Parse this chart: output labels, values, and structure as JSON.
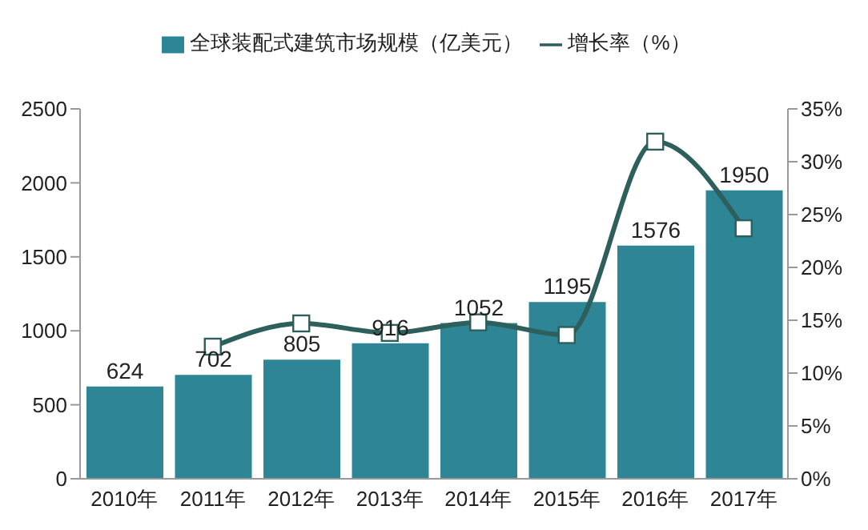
{
  "chart_data": {
    "type": "bar",
    "categories": [
      "2010年",
      "2011年",
      "2012年",
      "2013年",
      "2014年",
      "2015年",
      "2016年",
      "2017年"
    ],
    "series": [
      {
        "name": "全球装配式建筑市场规模（亿美元）",
        "color": "#2e8596",
        "values": [
          624,
          702,
          805,
          916,
          1052,
          1195,
          1576,
          1950
        ],
        "value_labels": [
          "624",
          "702",
          "805",
          "916",
          "1052",
          "1195",
          "1576",
          "1950"
        ]
      },
      {
        "name": "增长率（%）",
        "type": "line",
        "axis": "y2",
        "color": "#2d5f5c",
        "marker": "square",
        "values": [
          null,
          12.5,
          14.7,
          13.8,
          14.8,
          13.6,
          31.9,
          23.7
        ]
      }
    ],
    "ylim": [
      0,
      2500
    ],
    "yticks": [
      0,
      500,
      1000,
      1500,
      2000,
      2500
    ],
    "y2lim": [
      0,
      35
    ],
    "y2ticks": [
      {
        "value": 0,
        "label": "0%"
      },
      {
        "value": 5,
        "label": "5%"
      },
      {
        "value": 10,
        "label": "10%"
      },
      {
        "value": 15,
        "label": "15%"
      },
      {
        "value": 20,
        "label": "20%"
      },
      {
        "value": 25,
        "label": "25%"
      },
      {
        "value": 30,
        "label": "30%"
      },
      {
        "value": 35,
        "label": "35%"
      }
    ],
    "legend": "top",
    "grid": false
  }
}
